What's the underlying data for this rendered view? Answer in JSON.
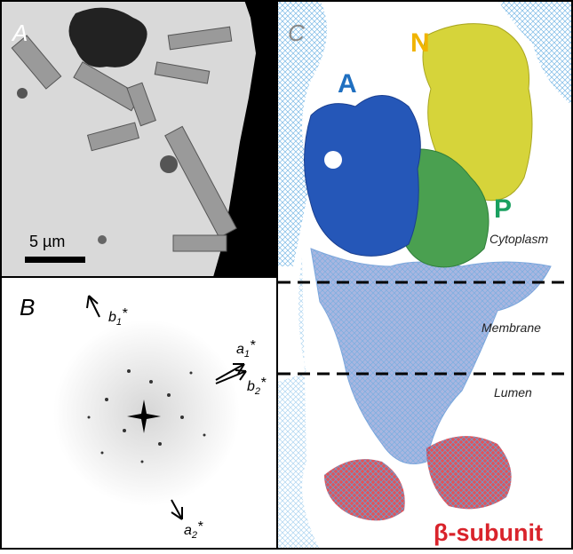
{
  "panels": [
    {
      "label": "A",
      "scale_bar": "5 µm"
    },
    {
      "label": "B",
      "vectors": [
        {
          "name": "b",
          "sub": "1",
          "sup": "*"
        },
        {
          "name": "a",
          "sub": "1",
          "sup": "*"
        },
        {
          "name": "b",
          "sub": "2",
          "sup": "*"
        },
        {
          "name": "a",
          "sub": "2",
          "sup": "*"
        }
      ]
    },
    {
      "label": "C",
      "domains": [
        "A",
        "N",
        "P"
      ],
      "regions": [
        "Cytoplasm",
        "Membrane",
        "Lumen"
      ],
      "subunit": "β-subunit"
    }
  ]
}
